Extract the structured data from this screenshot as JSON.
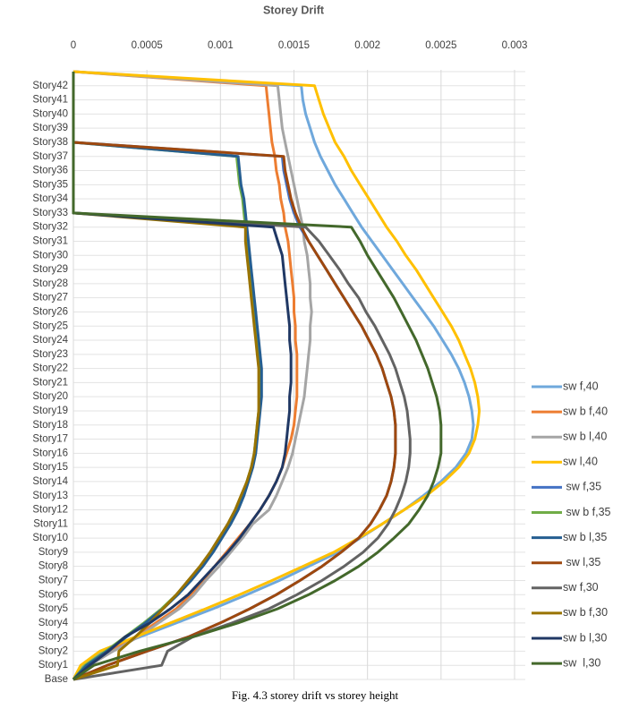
{
  "chart_data": {
    "type": "line",
    "title": "Storey Drift",
    "caption": "Fig. 4.3 storey drift vs storey height",
    "categories": [
      "Base",
      "Story1",
      "Story2",
      "Story3",
      "Story4",
      "Story5",
      "Story6",
      "Story7",
      "Story8",
      "Story9",
      "Story10",
      "Story11",
      "Story12",
      "Story13",
      "Story14",
      "Story15",
      "Story16",
      "Story17",
      "Story18",
      "Story19",
      "Story20",
      "Story21",
      "Story22",
      "Story23",
      "Story24",
      "Story25",
      "Story26",
      "Story27",
      "Story28",
      "Story29",
      "Story30",
      "Story31",
      "Story32",
      "Story33",
      "Story34",
      "Story35",
      "Story36",
      "Story37",
      "Story38",
      "Story39",
      "Story40",
      "Story41",
      "Story42",
      null
    ],
    "xlim": [
      0,
      0.003
    ],
    "xticks": [
      0,
      0.0005,
      0.001,
      0.0015,
      0.002,
      0.0025,
      0.003
    ],
    "grid": true,
    "legend": "right",
    "series": [
      {
        "name": "sw f,40",
        "color": "#6fa8dc",
        "values": [
          0,
          6e-05,
          0.0002,
          0.00045,
          0.0007,
          0.00095,
          0.00118,
          0.0014,
          0.0016,
          0.0018,
          0.00195,
          0.0021,
          0.00225,
          0.00238,
          0.0025,
          0.0026,
          0.00267,
          0.00271,
          0.00272,
          0.00271,
          0.00269,
          0.00266,
          0.00262,
          0.00257,
          0.00251,
          0.00245,
          0.00238,
          0.00231,
          0.00224,
          0.00217,
          0.0021,
          0.00203,
          0.00196,
          0.0019,
          0.00184,
          0.00178,
          0.00173,
          0.00168,
          0.00164,
          0.00161,
          0.00158,
          0.00156,
          0.00155,
          0
        ]
      },
      {
        "name": "sw b f,40",
        "color": "#ed7d31",
        "values": [
          0,
          0.0001,
          0.00025,
          0.00042,
          0.00056,
          0.0007,
          0.0008,
          0.00088,
          0.00096,
          0.00104,
          0.00112,
          0.0012,
          0.00127,
          0.00133,
          0.00138,
          0.00142,
          0.00145,
          0.00148,
          0.0015,
          0.00151,
          0.00152,
          0.00152,
          0.00152,
          0.00152,
          0.00151,
          0.00151,
          0.0015,
          0.0015,
          0.00149,
          0.00148,
          0.00147,
          0.00146,
          0.00144,
          0.00143,
          0.00141,
          0.0014,
          0.00138,
          0.00137,
          0.00135,
          0.00134,
          0.00133,
          0.00132,
          0.00131,
          0
        ]
      },
      {
        "name": "sw b l,40",
        "color": "#a5a5a5",
        "values": [
          0,
          0.00011,
          0.00027,
          0.00044,
          0.00058,
          0.00072,
          0.00082,
          0.0009,
          0.00099,
          0.00107,
          0.00115,
          0.00122,
          0.00133,
          0.00138,
          0.00142,
          0.00146,
          0.00149,
          0.00151,
          0.00153,
          0.00155,
          0.00157,
          0.00158,
          0.00159,
          0.0016,
          0.00161,
          0.00161,
          0.00162,
          0.00161,
          0.00161,
          0.0016,
          0.00159,
          0.00157,
          0.00156,
          0.00154,
          0.00152,
          0.0015,
          0.00148,
          0.00146,
          0.00144,
          0.00142,
          0.00141,
          0.0014,
          0.00139,
          0
        ]
      },
      {
        "name": "sw l,40",
        "color": "#ffc000",
        "values": [
          0,
          5e-05,
          0.00018,
          0.00042,
          0.00066,
          0.0009,
          0.00113,
          0.00135,
          0.00156,
          0.00177,
          0.00194,
          0.0021,
          0.00225,
          0.0024,
          0.00252,
          0.00262,
          0.00269,
          0.00273,
          0.00275,
          0.00276,
          0.00275,
          0.00273,
          0.0027,
          0.00266,
          0.00262,
          0.00257,
          0.00251,
          0.00245,
          0.00239,
          0.00233,
          0.00226,
          0.0022,
          0.00213,
          0.00207,
          0.00201,
          0.00195,
          0.00189,
          0.00184,
          0.00178,
          0.00174,
          0.0017,
          0.00167,
          0.00164,
          0
        ]
      },
      {
        "name": " sw f,35",
        "color": "#4472c4",
        "values": [
          0,
          0.00023,
          0.0005,
          0.00078,
          0.001,
          0.0012,
          0.00138,
          0.00154,
          0.00169,
          0.00182,
          0.00194,
          0.00202,
          0.00208,
          0.00213,
          0.00216,
          0.00218,
          0.00219,
          0.00219,
          0.00219,
          0.00218,
          0.00216,
          0.00213,
          0.0021,
          0.00206,
          0.00201,
          0.00196,
          0.0019,
          0.00184,
          0.00178,
          0.00172,
          0.00166,
          0.0016,
          0.00154,
          0.0015,
          0.00147,
          0.00145,
          0.00143,
          0.00142,
          0,
          0,
          0,
          0,
          0,
          0
        ]
      },
      {
        "name": " sw b f,35",
        "color": "#70ad47",
        "values": [
          0,
          8e-05,
          0.00022,
          0.00035,
          0.00048,
          0.0006,
          0.0007,
          0.00079,
          0.00087,
          0.00094,
          0.001,
          0.00106,
          0.00111,
          0.00115,
          0.00118,
          0.00121,
          0.00123,
          0.00124,
          0.00125,
          0.00126,
          0.00127,
          0.00127,
          0.00127,
          0.00126,
          0.00125,
          0.00124,
          0.00123,
          0.00122,
          0.00121,
          0.0012,
          0.00119,
          0.00118,
          0.00117,
          0.00116,
          0.00115,
          0.00113,
          0.00112,
          0.00111,
          0,
          0,
          0,
          0,
          0,
          0
        ]
      },
      {
        "name": "sw b l,35",
        "color": "#255e91",
        "values": [
          0,
          9e-05,
          0.00023,
          0.00036,
          0.00049,
          0.00061,
          0.00071,
          0.0008,
          0.00088,
          0.00095,
          0.00101,
          0.00107,
          0.00112,
          0.00116,
          0.00119,
          0.00122,
          0.00124,
          0.00125,
          0.00126,
          0.00127,
          0.00128,
          0.00128,
          0.00128,
          0.00127,
          0.00126,
          0.00125,
          0.00124,
          0.00123,
          0.00122,
          0.00121,
          0.0012,
          0.00119,
          0.00118,
          0.00117,
          0.00116,
          0.00114,
          0.00113,
          0.00112,
          0,
          0,
          0,
          0,
          0,
          0
        ]
      },
      {
        "name": " sw l,35",
        "color": "#9e480e",
        "values": [
          0,
          0.00023,
          0.0005,
          0.00078,
          0.001,
          0.0012,
          0.00138,
          0.00154,
          0.00169,
          0.00182,
          0.00194,
          0.00202,
          0.00208,
          0.00213,
          0.00216,
          0.00218,
          0.00219,
          0.00219,
          0.00219,
          0.00218,
          0.00216,
          0.00213,
          0.0021,
          0.00206,
          0.00201,
          0.00196,
          0.0019,
          0.00184,
          0.00178,
          0.00172,
          0.00166,
          0.0016,
          0.00155,
          0.00151,
          0.00148,
          0.00146,
          0.00144,
          0.00143,
          0,
          0,
          0,
          0,
          0,
          0
        ]
      },
      {
        "name": "sw f,30",
        "color": "#636363",
        "values": [
          0,
          0.0006,
          0.00064,
          0.00081,
          0.00108,
          0.00133,
          0.00152,
          0.00169,
          0.00184,
          0.00197,
          0.00207,
          0.00214,
          0.00219,
          0.00223,
          0.00226,
          0.00228,
          0.00229,
          0.00229,
          0.00228,
          0.00227,
          0.00225,
          0.00222,
          0.00219,
          0.00215,
          0.0021,
          0.00205,
          0.00199,
          0.00194,
          0.00187,
          0.00181,
          0.00174,
          0.00167,
          0.00158,
          0,
          0,
          0,
          0,
          0,
          0,
          0,
          0,
          0,
          0,
          0
        ]
      },
      {
        "name": "sw b f,30",
        "color": "#997300",
        "values": [
          0,
          0.0003,
          0.00031,
          0.00042,
          0.00052,
          0.00061,
          0.0007,
          0.00078,
          0.00086,
          0.00093,
          0.00099,
          0.00105,
          0.0011,
          0.00114,
          0.00118,
          0.00121,
          0.00123,
          0.00124,
          0.00125,
          0.00126,
          0.00126,
          0.00126,
          0.00126,
          0.00125,
          0.00124,
          0.00123,
          0.00122,
          0.00121,
          0.0012,
          0.00119,
          0.00118,
          0.00117,
          0.00117,
          0,
          0,
          0,
          0,
          0,
          0,
          0,
          0,
          0,
          0,
          0
        ]
      },
      {
        "name": "sw b l,30",
        "color": "#203864",
        "values": [
          0,
          0.00011,
          0.00024,
          0.00035,
          0.00052,
          0.00066,
          0.00078,
          0.00087,
          0.00096,
          0.00105,
          0.00113,
          0.0012,
          0.00127,
          0.00133,
          0.00138,
          0.00142,
          0.00144,
          0.00145,
          0.00146,
          0.00147,
          0.00147,
          0.00148,
          0.00148,
          0.00148,
          0.00147,
          0.00147,
          0.00146,
          0.00145,
          0.00144,
          0.00143,
          0.00142,
          0.00139,
          0.00136,
          0,
          0,
          0,
          0,
          0,
          0,
          0,
          0,
          0,
          0,
          0
        ]
      },
      {
        "name": "sw  l,30",
        "color": "#43682b",
        "values": [
          0,
          0.00014,
          0.00045,
          0.00081,
          0.00112,
          0.00139,
          0.0016,
          0.00178,
          0.00194,
          0.00207,
          0.00218,
          0.00228,
          0.00235,
          0.00241,
          0.00245,
          0.00248,
          0.0025,
          0.0025,
          0.0025,
          0.00249,
          0.00247,
          0.00244,
          0.00241,
          0.00237,
          0.00233,
          0.00228,
          0.00223,
          0.00218,
          0.00212,
          0.00206,
          0.002,
          0.00195,
          0.00189,
          0,
          0,
          0,
          0,
          0,
          0,
          0,
          0,
          0,
          0,
          0
        ]
      }
    ]
  }
}
